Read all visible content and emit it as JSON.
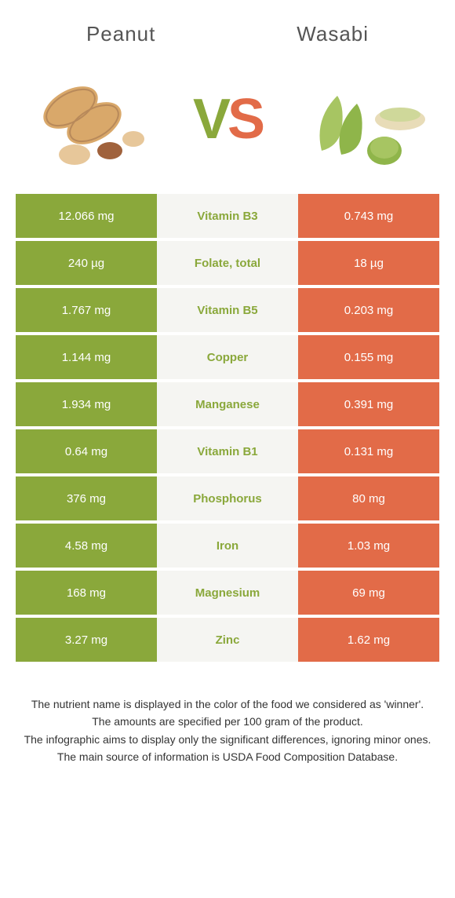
{
  "header": {
    "left_title": "Peanut",
    "right_title": "Wasabi"
  },
  "colors": {
    "green": "#8aa83b",
    "orange": "#e26b48",
    "center_bg": "#f5f5f2"
  },
  "vs": {
    "v": "V",
    "s": "S"
  },
  "rows": [
    {
      "left": "12.066 mg",
      "nutrient": "Vitamin B3",
      "right": "0.743 mg",
      "winner": "left"
    },
    {
      "left": "240 µg",
      "nutrient": "Folate, total",
      "right": "18 µg",
      "winner": "left"
    },
    {
      "left": "1.767 mg",
      "nutrient": "Vitamin B5",
      "right": "0.203 mg",
      "winner": "left"
    },
    {
      "left": "1.144 mg",
      "nutrient": "Copper",
      "right": "0.155 mg",
      "winner": "left"
    },
    {
      "left": "1.934 mg",
      "nutrient": "Manganese",
      "right": "0.391 mg",
      "winner": "left"
    },
    {
      "left": "0.64 mg",
      "nutrient": "Vitamin B1",
      "right": "0.131 mg",
      "winner": "left"
    },
    {
      "left": "376 mg",
      "nutrient": "Phosphorus",
      "right": "80 mg",
      "winner": "left"
    },
    {
      "left": "4.58 mg",
      "nutrient": "Iron",
      "right": "1.03 mg",
      "winner": "left"
    },
    {
      "left": "168 mg",
      "nutrient": "Magnesium",
      "right": "69 mg",
      "winner": "left"
    },
    {
      "left": "3.27 mg",
      "nutrient": "Zinc",
      "right": "1.62 mg",
      "winner": "left"
    }
  ],
  "footer": {
    "line1": "The nutrient name is displayed in the color of the food we considered as 'winner'.",
    "line2": "The amounts are specified per 100 gram of the product.",
    "line3": "The infographic aims to display only the significant differences, ignoring minor ones.",
    "line4": "The main source of information is USDA Food Composition Database."
  }
}
